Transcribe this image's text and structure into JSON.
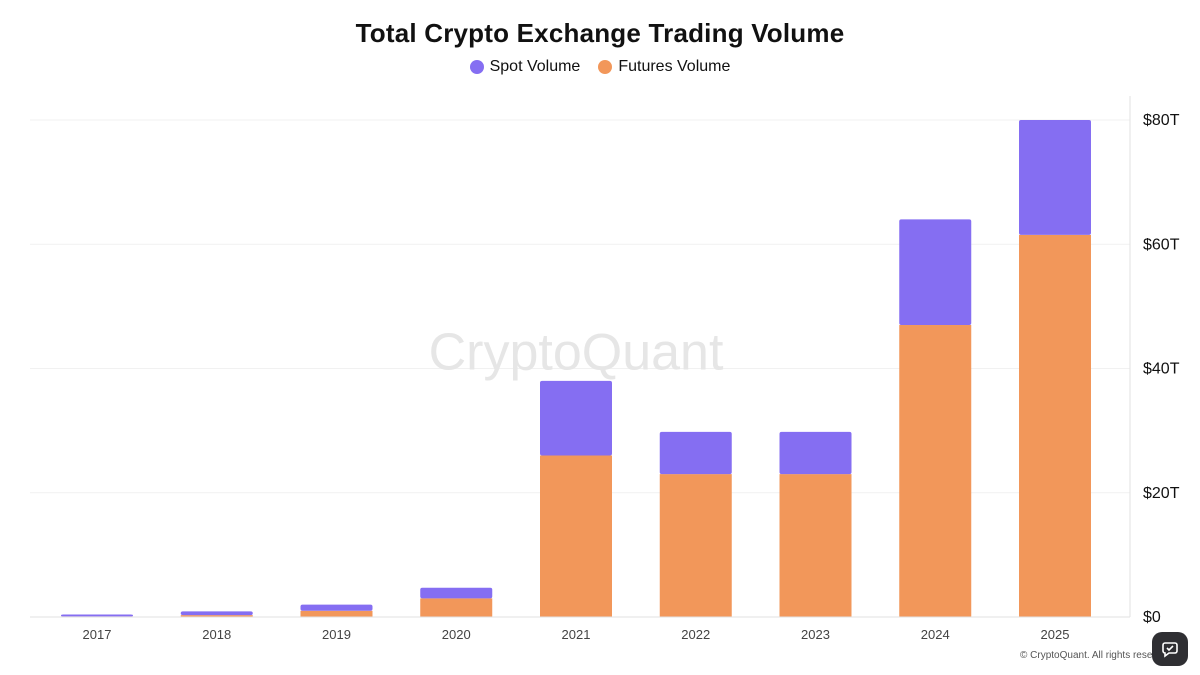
{
  "chart_data": {
    "type": "bar",
    "stacked": true,
    "title": "Total Crypto Exchange Trading Volume",
    "categories": [
      "2017",
      "2018",
      "2019",
      "2020",
      "2021",
      "2022",
      "2023",
      "2024",
      "2025"
    ],
    "series": [
      {
        "name": "Futures Volume",
        "color": "#f2975a",
        "values": [
          0.1,
          0.3,
          1.0,
          3.0,
          26.0,
          23.0,
          23.0,
          47.0,
          61.5
        ]
      },
      {
        "name": "Spot Volume",
        "color": "#856ef2",
        "values": [
          0.3,
          0.6,
          1.0,
          1.7,
          12.0,
          6.8,
          6.8,
          17.0,
          18.5
        ]
      }
    ],
    "ylim": [
      0,
      80
    ],
    "yticks": [
      "$0",
      "$20T",
      "$40T",
      "$60T",
      "$80T"
    ],
    "ytick_values": [
      0,
      20,
      40,
      60,
      80
    ],
    "y_axis_side": "right",
    "grid": true,
    "legend_position": "top-center",
    "watermark": "CryptoQuant"
  },
  "legend": {
    "spot_label": "Spot Volume",
    "futures_label": "Futures Volume",
    "spot_color": "#856ef2",
    "futures_color": "#f2975a"
  },
  "footer": {
    "copyright": "© CryptoQuant. All rights reserved."
  },
  "fab": {
    "icon": "chat-bubble-icon"
  }
}
